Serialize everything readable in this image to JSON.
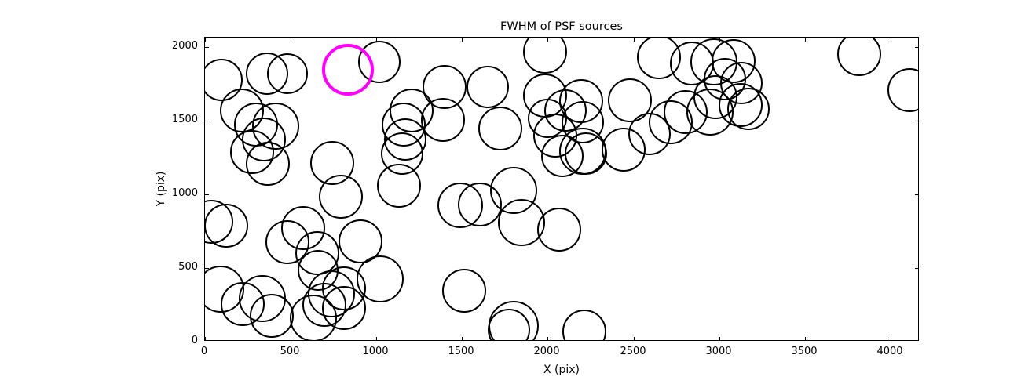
{
  "chart_data": {
    "type": "scatter",
    "title": "FWHM of PSF sources",
    "xlabel": "X (pix)",
    "ylabel": "Y (pix)",
    "xlim": [
      0,
      4170
    ],
    "ylim": [
      0,
      2065
    ],
    "xticks": [
      0,
      500,
      1000,
      1500,
      2000,
      2500,
      3000,
      3500,
      4000
    ],
    "yticks": [
      0,
      500,
      1000,
      1500,
      2000
    ],
    "grid": false,
    "legend": "none",
    "marker": "open-circle",
    "colors": {
      "source": "#000000",
      "highlight": "#ff00ff",
      "spine": "#000000"
    },
    "highlighted_point": {
      "x": 834,
      "y": 1846,
      "r": 151
    },
    "points": [
      [
        96,
        1777,
        124
      ],
      [
        362,
        1819,
        124
      ],
      [
        481,
        1819,
        119
      ],
      [
        1017,
        1899,
        124
      ],
      [
        1398,
        1729,
        128
      ],
      [
        1650,
        1729,
        124
      ],
      [
        1984,
        1968,
        128
      ],
      [
        2649,
        1931,
        128
      ],
      [
        2841,
        1888,
        128
      ],
      [
        2970,
        1899,
        137
      ],
      [
        3084,
        1904,
        128
      ],
      [
        3034,
        1782,
        124
      ],
      [
        3130,
        1755,
        124
      ],
      [
        2979,
        1660,
        128
      ],
      [
        3126,
        1606,
        128
      ],
      [
        3172,
        1580,
        124
      ],
      [
        2947,
        1559,
        137
      ],
      [
        2718,
        1489,
        128
      ],
      [
        2805,
        1559,
        128
      ],
      [
        3818,
        1952,
        128
      ],
      [
        4111,
        1707,
        128
      ],
      [
        215,
        1569,
        128
      ],
      [
        298,
        1473,
        128
      ],
      [
        412,
        1463,
        137
      ],
      [
        344,
        1372,
        128
      ],
      [
        275,
        1287,
        128
      ],
      [
        367,
        1207,
        128
      ],
      [
        1205,
        1569,
        128
      ],
      [
        1160,
        1473,
        128
      ],
      [
        1169,
        1372,
        124
      ],
      [
        1150,
        1277,
        124
      ],
      [
        1132,
        1058,
        128
      ],
      [
        1389,
        1505,
        128
      ],
      [
        1984,
        1670,
        128
      ],
      [
        2195,
        1633,
        128
      ],
      [
        2104,
        1569,
        124
      ],
      [
        2479,
        1638,
        128
      ],
      [
        1998,
        1516,
        115
      ],
      [
        2204,
        1489,
        124
      ],
      [
        2044,
        1399,
        128
      ],
      [
        2204,
        1293,
        137
      ],
      [
        2223,
        1277,
        124
      ],
      [
        2085,
        1261,
        124
      ],
      [
        2443,
        1303,
        128
      ],
      [
        2594,
        1410,
        124
      ],
      [
        1723,
        1447,
        128
      ],
      [
        1847,
        808,
        137
      ],
      [
        2067,
        761,
        128
      ],
      [
        37,
        814,
        128
      ],
      [
        124,
        787,
        128
      ],
      [
        573,
        771,
        128
      ],
      [
        481,
        675,
        128
      ],
      [
        655,
        601,
        128
      ],
      [
        660,
        484,
        119
      ],
      [
        907,
        681,
        128
      ],
      [
        1022,
        426,
        137
      ],
      [
        743,
        1213,
        128
      ],
      [
        793,
        984,
        128
      ],
      [
        92,
        356,
        137
      ],
      [
        220,
        255,
        128
      ],
      [
        335,
        293,
        137
      ],
      [
        390,
        176,
        128
      ],
      [
        632,
        160,
        137
      ],
      [
        697,
        250,
        128
      ],
      [
        738,
        324,
        137
      ],
      [
        811,
        362,
        128
      ],
      [
        811,
        229,
        128
      ],
      [
        1490,
        925,
        133
      ],
      [
        1604,
        931,
        128
      ],
      [
        1801,
        1027,
        137
      ],
      [
        1512,
        346,
        128
      ],
      [
        1801,
        106,
        147
      ],
      [
        1774,
        80,
        124
      ],
      [
        2214,
        69,
        128
      ]
    ]
  }
}
